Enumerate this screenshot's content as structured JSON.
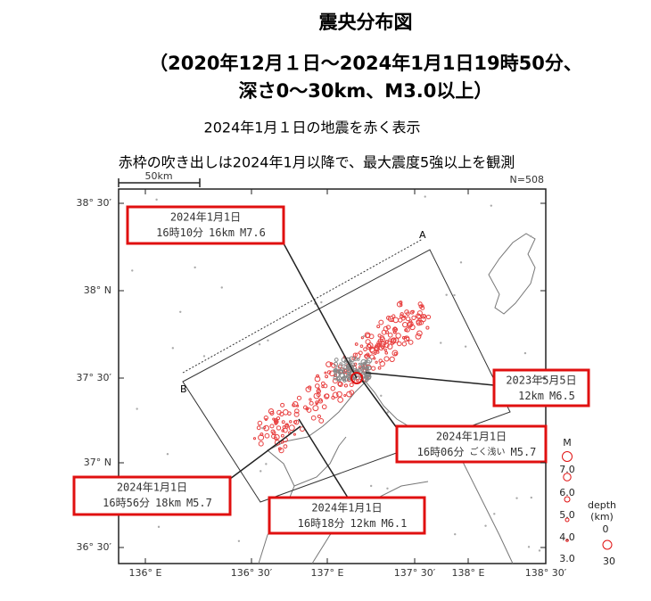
{
  "title": [
    "震央分布図",
    "（2020年12月１日～2024年1月1日19時50分、",
    "深さ0～30km、M3.0以上）"
  ],
  "subtitle": [
    "2024年1月１日の地震を赤く表示",
    "赤枠の吹き出しは2024年1月以降で、最大震度5強以上を観測"
  ],
  "map": {
    "scale_label": "50km",
    "count": "N=508",
    "lat_labels": [
      "38° 30′",
      "38° N",
      "37° 30′",
      "37° N",
      "36° 30′"
    ],
    "lon_labels": [
      "136° E",
      "136° 30′",
      "137° E",
      "137° 30′",
      "138° E",
      "138° 30′"
    ],
    "section": {
      "a": "A",
      "b": "B"
    }
  },
  "callouts": [
    {
      "date": "2024年1月1日",
      "time": "16時10分",
      "depth": "16km",
      "magnitude": "M7.6"
    },
    {
      "date": "2023年5月5日",
      "depth": "12km",
      "magnitude": "M6.5"
    },
    {
      "date": "2024年1月1日",
      "time": "16時06分",
      "depth": "ごく浅い",
      "magnitude": "M5.7"
    },
    {
      "date": "2024年1月1日",
      "time": "16時56分",
      "depth": "18km",
      "magnitude": "M5.7"
    },
    {
      "date": "2024年1月1日",
      "time": "16時18分",
      "depth": "12km",
      "magnitude": "M6.1"
    }
  ],
  "legend": {
    "magnitude_title": "M",
    "magnitudes": [
      "7.0",
      "6.0",
      "5.0",
      "4.0",
      "3.0"
    ],
    "depth_title": [
      "depth",
      "(km)"
    ],
    "depths": [
      "0",
      "30"
    ]
  }
}
